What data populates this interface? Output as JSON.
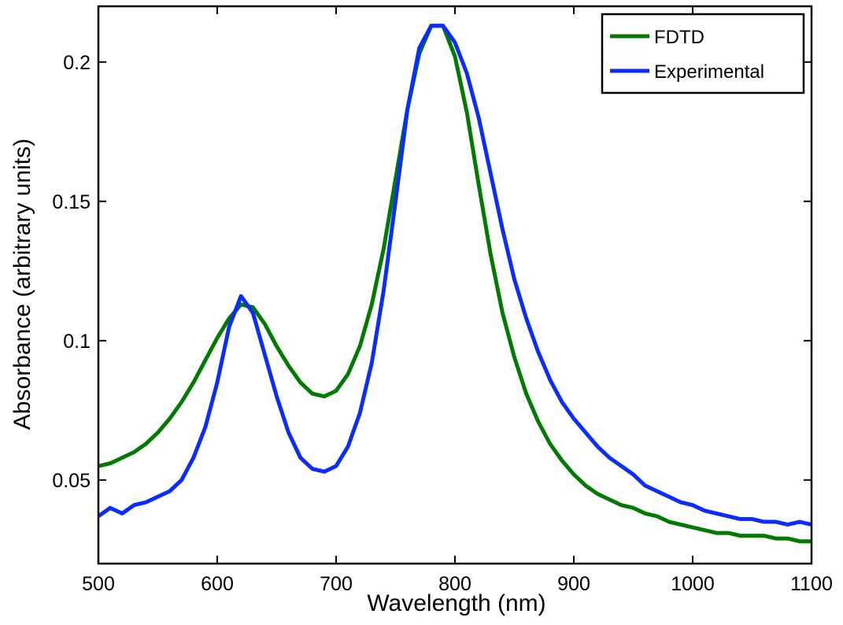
{
  "chart_data": {
    "type": "line",
    "x_label": "Wavelength (nm)",
    "y_label": "Absorbance (arbitrary units)",
    "x": [
      500,
      510,
      520,
      530,
      540,
      550,
      560,
      570,
      580,
      590,
      600,
      610,
      620,
      630,
      640,
      650,
      660,
      670,
      680,
      690,
      700,
      710,
      720,
      730,
      740,
      750,
      760,
      770,
      780,
      790,
      800,
      810,
      820,
      830,
      840,
      850,
      860,
      870,
      880,
      890,
      900,
      910,
      920,
      930,
      940,
      950,
      960,
      970,
      980,
      990,
      1000,
      1010,
      1020,
      1030,
      1040,
      1050,
      1060,
      1070,
      1080,
      1090,
      1100
    ],
    "series": [
      {
        "name": "FDTD",
        "color": "#007a00",
        "values": [
          0.055,
          0.056,
          0.058,
          0.06,
          0.063,
          0.067,
          0.072,
          0.078,
          0.085,
          0.093,
          0.101,
          0.108,
          0.113,
          0.112,
          0.106,
          0.098,
          0.091,
          0.085,
          0.081,
          0.08,
          0.082,
          0.088,
          0.098,
          0.113,
          0.133,
          0.158,
          0.183,
          0.203,
          0.213,
          0.213,
          0.202,
          0.182,
          0.156,
          0.131,
          0.11,
          0.094,
          0.081,
          0.071,
          0.063,
          0.057,
          0.052,
          0.048,
          0.045,
          0.043,
          0.041,
          0.04,
          0.038,
          0.037,
          0.035,
          0.034,
          0.033,
          0.032,
          0.031,
          0.031,
          0.03,
          0.03,
          0.03,
          0.029,
          0.029,
          0.028,
          0.028
        ]
      },
      {
        "name": "Experimental",
        "color": "#0a2cff",
        "values": [
          0.037,
          0.04,
          0.038,
          0.041,
          0.042,
          0.044,
          0.046,
          0.05,
          0.058,
          0.069,
          0.085,
          0.105,
          0.116,
          0.11,
          0.095,
          0.08,
          0.067,
          0.058,
          0.054,
          0.053,
          0.055,
          0.062,
          0.074,
          0.092,
          0.118,
          0.15,
          0.183,
          0.205,
          0.213,
          0.213,
          0.207,
          0.196,
          0.18,
          0.16,
          0.14,
          0.122,
          0.108,
          0.096,
          0.086,
          0.078,
          0.072,
          0.067,
          0.062,
          0.058,
          0.055,
          0.052,
          0.048,
          0.046,
          0.044,
          0.042,
          0.041,
          0.039,
          0.038,
          0.037,
          0.036,
          0.036,
          0.035,
          0.035,
          0.034,
          0.035,
          0.034
        ]
      }
    ],
    "xlim": [
      500,
      1100
    ],
    "xticks": [
      500,
      600,
      700,
      800,
      900,
      1000,
      1100
    ],
    "ylim": [
      0.02,
      0.22
    ],
    "yticks": [
      0.05,
      0.1,
      0.15,
      0.2
    ],
    "grid": false,
    "legend": "upper-right"
  }
}
